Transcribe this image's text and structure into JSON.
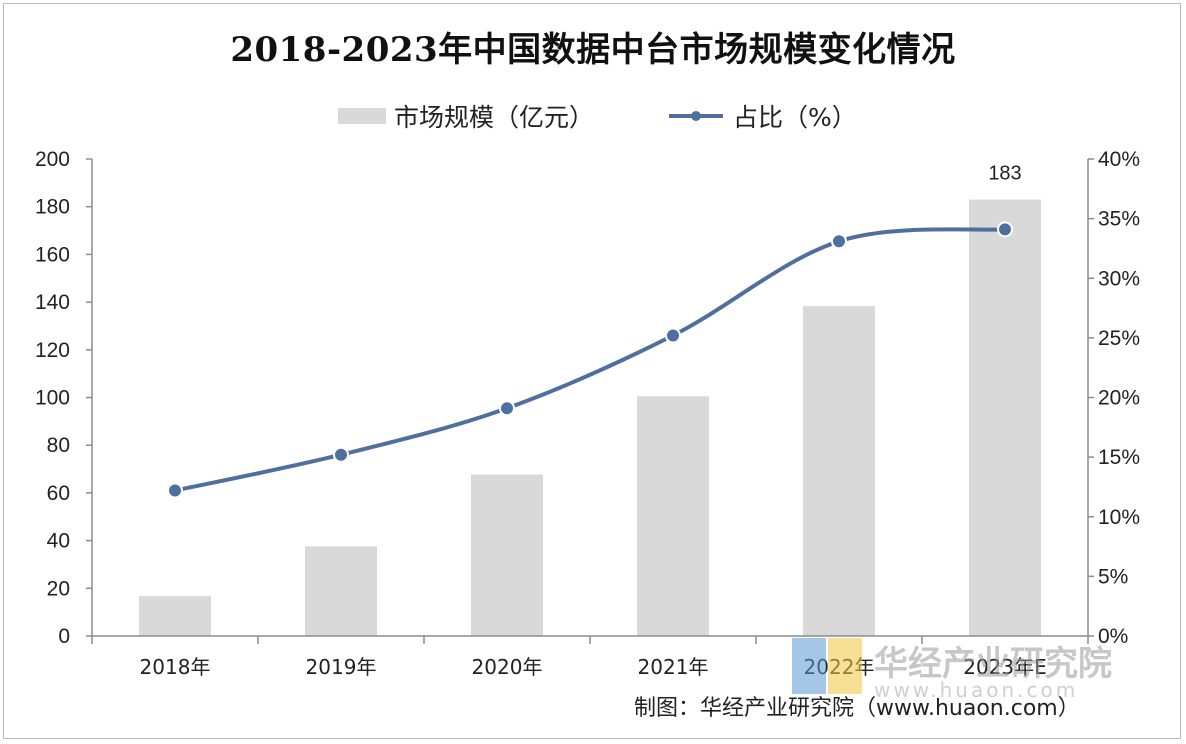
{
  "title": "2018-2023年中国数据中台市场规模变化情况",
  "legend": {
    "bar_label": "市场规模（亿元）",
    "line_label": "占比（%）"
  },
  "source": "制图：华经产业研究院（www.huaon.com）",
  "watermark": {
    "name": "华经产业研究院",
    "url": "www.huaon.com"
  },
  "colors": {
    "bar": "#d9d9d9",
    "line": "#4f6f9f",
    "axis": "#8c8c8c"
  },
  "chart_data": {
    "type": "bar",
    "categories": [
      "2018年",
      "2019年",
      "2020年",
      "2021年",
      "2022年",
      "2023年E"
    ],
    "series": [
      {
        "name": "市场规模（亿元）",
        "type": "bar",
        "axis": "left",
        "values": [
          16.8,
          37.6,
          67.7,
          100.5,
          138.3,
          183
        ]
      },
      {
        "name": "占比（%）",
        "type": "line",
        "axis": "right",
        "smooth": true,
        "values": [
          12.2,
          15.2,
          19.1,
          25.2,
          33.1,
          34.1
        ]
      }
    ],
    "data_labels": [
      {
        "series": "市场规模（亿元）",
        "category": "2023年E",
        "text": "183"
      }
    ],
    "y_left": {
      "lim": [
        0,
        200
      ],
      "ticks": [
        "0",
        "20",
        "40",
        "60",
        "80",
        "100",
        "120",
        "140",
        "160",
        "180",
        "200"
      ]
    },
    "y_right": {
      "lim": [
        0,
        40
      ],
      "ticks": [
        "0%",
        "5%",
        "10%",
        "15%",
        "20%",
        "25%",
        "30%",
        "35%",
        "40%"
      ]
    },
    "grid": false,
    "legend_position": "top-center"
  }
}
